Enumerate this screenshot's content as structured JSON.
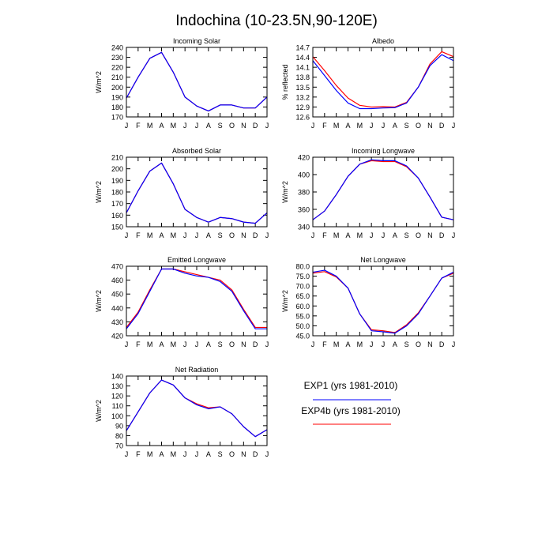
{
  "title": "Indochina (10-23.5N,90-120E)",
  "colors": {
    "exp1": "#0000ff",
    "exp4b": "#ff0000",
    "frame": "#000000"
  },
  "legend": [
    {
      "label": "EXP1 (yrs 1981-2010)",
      "color": "#0000ff"
    },
    {
      "label": "EXP4b (yrs 1981-2010)",
      "color": "#ff0000"
    }
  ],
  "chart_data": [
    {
      "type": "line",
      "title": "Incoming Solar",
      "ylabel": "W/m^2",
      "categories": [
        "J",
        "F",
        "M",
        "A",
        "M",
        "J",
        "J",
        "A",
        "S",
        "O",
        "N",
        "D",
        "J"
      ],
      "ylim": [
        170,
        240
      ],
      "yticks": [
        170,
        180,
        190,
        200,
        210,
        220,
        230,
        240
      ],
      "yticklabels": [
        "170",
        "180",
        "190",
        "200",
        "210",
        "220",
        "230",
        "240"
      ],
      "series": [
        {
          "name": "EXP1 (yrs 1981-2010)",
          "color": "#0000ff",
          "values": [
            189,
            210,
            229,
            235,
            215,
            190,
            181,
            176,
            182,
            182,
            179,
            179,
            190
          ]
        },
        {
          "name": "EXP4b (yrs 1981-2010)",
          "color": "#ff0000",
          "values": [
            189,
            210,
            229,
            235,
            215,
            190,
            181,
            176,
            182,
            182,
            179,
            179,
            190
          ]
        }
      ]
    },
    {
      "type": "line",
      "title": "Albedo",
      "ylabel": "% reflected",
      "categories": [
        "J",
        "F",
        "M",
        "A",
        "M",
        "J",
        "J",
        "A",
        "S",
        "O",
        "N",
        "D",
        "J"
      ],
      "ylim": [
        12.6,
        14.7
      ],
      "yticks": [
        12.6,
        12.9,
        13.2,
        13.5,
        13.8,
        14.1,
        14.4,
        14.7
      ],
      "yticklabels": [
        "12.6",
        "12.9",
        "13.2",
        "13.5",
        "13.8",
        "14.1",
        "14.4",
        "14.7"
      ],
      "series": [
        {
          "name": "EXP1 (yrs 1981-2010)",
          "color": "#0000ff",
          "values": [
            14.3,
            13.85,
            13.4,
            13.02,
            12.85,
            12.85,
            12.87,
            12.88,
            13.02,
            13.5,
            14.15,
            14.48,
            14.3
          ]
        },
        {
          "name": "EXP4b (yrs 1981-2010)",
          "color": "#ff0000",
          "values": [
            14.42,
            14.0,
            13.55,
            13.17,
            12.95,
            12.9,
            12.91,
            12.9,
            13.04,
            13.5,
            14.2,
            14.57,
            14.42
          ]
        }
      ]
    },
    {
      "type": "line",
      "title": "Absorbed Solar",
      "ylabel": "W/m^2",
      "categories": [
        "J",
        "F",
        "M",
        "A",
        "M",
        "J",
        "J",
        "A",
        "S",
        "O",
        "N",
        "D",
        "J"
      ],
      "ylim": [
        150,
        210
      ],
      "yticks": [
        150,
        160,
        170,
        180,
        190,
        200,
        210
      ],
      "yticklabels": [
        "150",
        "160",
        "170",
        "180",
        "190",
        "200",
        "210"
      ],
      "series": [
        {
          "name": "EXP1 (yrs 1981-2010)",
          "color": "#0000ff",
          "values": [
            162,
            181,
            198,
            205,
            187,
            165,
            158,
            154,
            158,
            157,
            154,
            153,
            162
          ]
        },
        {
          "name": "EXP4b (yrs 1981-2010)",
          "color": "#ff0000",
          "values": [
            162,
            181,
            198,
            205,
            187,
            165,
            158,
            154,
            158,
            157,
            154,
            153,
            162
          ]
        }
      ]
    },
    {
      "type": "line",
      "title": "Incoming Longwave",
      "ylabel": "W/m^2",
      "categories": [
        "J",
        "F",
        "M",
        "A",
        "M",
        "J",
        "J",
        "A",
        "S",
        "O",
        "N",
        "D",
        "J"
      ],
      "ylim": [
        340,
        420
      ],
      "yticks": [
        340,
        360,
        380,
        400,
        420
      ],
      "yticklabels": [
        "340",
        "360",
        "380",
        "400",
        "420"
      ],
      "series": [
        {
          "name": "EXP1 (yrs 1981-2010)",
          "color": "#0000ff",
          "values": [
            348,
            358,
            377,
            398,
            412,
            417,
            416,
            416,
            410,
            396,
            374,
            351,
            348
          ]
        },
        {
          "name": "EXP4b (yrs 1981-2010)",
          "color": "#ff0000",
          "values": [
            348,
            358,
            377,
            398,
            412,
            416,
            415,
            415,
            409,
            396,
            374,
            351,
            348
          ]
        }
      ]
    },
    {
      "type": "line",
      "title": "Emitted Longwave",
      "ylabel": "W/m^2",
      "categories": [
        "J",
        "F",
        "M",
        "A",
        "M",
        "J",
        "J",
        "A",
        "S",
        "O",
        "N",
        "D",
        "J"
      ],
      "ylim": [
        420,
        470
      ],
      "yticks": [
        420,
        430,
        440,
        450,
        460,
        470
      ],
      "yticklabels": [
        "420",
        "430",
        "440",
        "450",
        "460",
        "470"
      ],
      "series": [
        {
          "name": "EXP1 (yrs 1981-2010)",
          "color": "#0000ff",
          "values": [
            425,
            436,
            452,
            468,
            468,
            465,
            463,
            462,
            459,
            452,
            438,
            425,
            425
          ]
        },
        {
          "name": "EXP4b (yrs 1981-2010)",
          "color": "#ff0000",
          "values": [
            426,
            437,
            453,
            468,
            468,
            466,
            464,
            462,
            460,
            453,
            439,
            426,
            426
          ]
        }
      ]
    },
    {
      "type": "line",
      "title": "Net Longwave",
      "ylabel": "W/m^2",
      "categories": [
        "J",
        "F",
        "M",
        "A",
        "M",
        "J",
        "J",
        "A",
        "S",
        "O",
        "N",
        "D",
        "J"
      ],
      "ylim": [
        45.0,
        80.0
      ],
      "yticks": [
        45,
        50,
        55,
        60,
        65,
        70,
        75,
        80
      ],
      "yticklabels": [
        "45.0",
        "50.0",
        "55.0",
        "60.0",
        "65.0",
        "70.0",
        "75.0",
        "80.0"
      ],
      "series": [
        {
          "name": "EXP1 (yrs 1981-2010)",
          "color": "#0000ff",
          "values": [
            77,
            78,
            75,
            69,
            56,
            47.5,
            47,
            46.3,
            50,
            56,
            65,
            74,
            77
          ]
        },
        {
          "name": "EXP4b (yrs 1981-2010)",
          "color": "#ff0000",
          "values": [
            76.5,
            77.3,
            74.6,
            69,
            56,
            48,
            47.5,
            46.6,
            50.5,
            56.5,
            65,
            74,
            76.5
          ]
        }
      ]
    },
    {
      "type": "line",
      "title": "Net Radiation",
      "ylabel": "W/m^2",
      "categories": [
        "J",
        "F",
        "M",
        "A",
        "M",
        "J",
        "J",
        "A",
        "S",
        "O",
        "N",
        "D",
        "J"
      ],
      "ylim": [
        70,
        140
      ],
      "yticks": [
        70,
        80,
        90,
        100,
        110,
        120,
        130,
        140
      ],
      "yticklabels": [
        "70",
        "80",
        "90",
        "100",
        "110",
        "120",
        "130",
        "140"
      ],
      "series": [
        {
          "name": "EXP1 (yrs 1981-2010)",
          "color": "#0000ff",
          "values": [
            85,
            104,
            123,
            136,
            131,
            118,
            111,
            107,
            109,
            102,
            89,
            79,
            86
          ]
        },
        {
          "name": "EXP4b (yrs 1981-2010)",
          "color": "#ff0000",
          "values": [
            85,
            104,
            123,
            136,
            131,
            118,
            112,
            108,
            109,
            102,
            89,
            79,
            86
          ]
        }
      ]
    }
  ]
}
